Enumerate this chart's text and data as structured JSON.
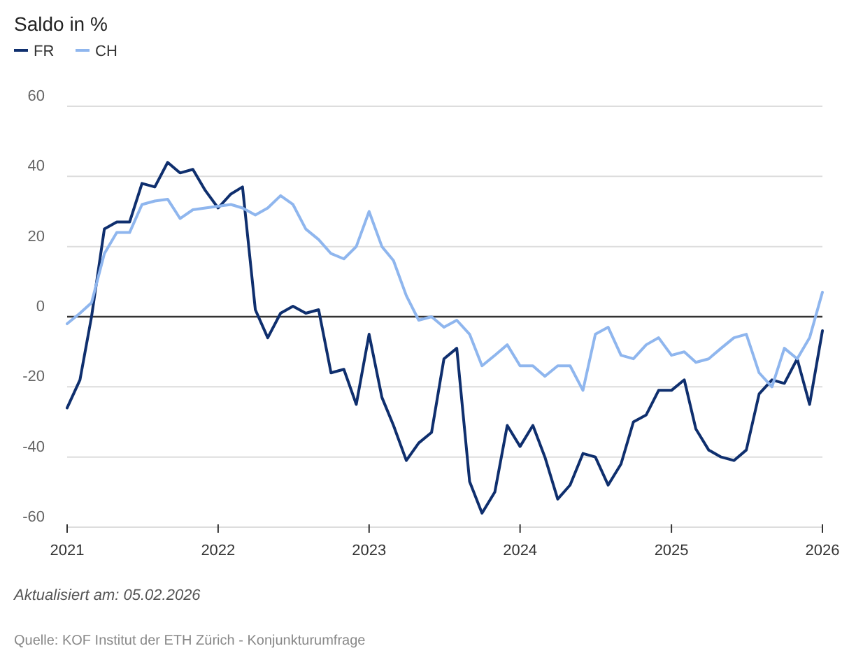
{
  "chart_data": {
    "type": "line",
    "title": "Saldo in %",
    "x": [
      "2021-01",
      "2021-02",
      "2021-03",
      "2021-04",
      "2021-05",
      "2021-06",
      "2021-07",
      "2021-08",
      "2021-09",
      "2021-10",
      "2021-11",
      "2021-12",
      "2022-01",
      "2022-02",
      "2022-03",
      "2022-04",
      "2022-05",
      "2022-06",
      "2022-07",
      "2022-08",
      "2022-09",
      "2022-10",
      "2022-11",
      "2022-12",
      "2023-01",
      "2023-02",
      "2023-03",
      "2023-04",
      "2023-05",
      "2023-06",
      "2023-07",
      "2023-08",
      "2023-09",
      "2023-10",
      "2023-11",
      "2023-12",
      "2024-01",
      "2024-02",
      "2024-03",
      "2024-04",
      "2024-05",
      "2024-06",
      "2024-07",
      "2024-08",
      "2024-09",
      "2024-10",
      "2024-11",
      "2024-12",
      "2025-01",
      "2025-02",
      "2025-03",
      "2025-04",
      "2025-05",
      "2025-06",
      "2025-07",
      "2025-08",
      "2025-09",
      "2025-10",
      "2025-11",
      "2025-12",
      "2026-01"
    ],
    "series": [
      {
        "name": "FR",
        "color": "#0f2f6e",
        "values": [
          -26,
          -18,
          0,
          25,
          27,
          27,
          38,
          37,
          44,
          41,
          42,
          36,
          31,
          35,
          37,
          2,
          -6,
          1,
          3,
          1,
          2,
          -16,
          -15,
          -25,
          -5,
          -23,
          -31,
          -41,
          -36,
          -33,
          -12,
          -9,
          -47,
          -56,
          -50,
          -31,
          -37,
          -31,
          -40,
          -52,
          -48,
          -39,
          -40,
          -48,
          -42,
          -30,
          -28,
          -21,
          -21,
          -18,
          -32,
          -38,
          -40,
          -41,
          -38,
          -22,
          -18,
          -19,
          -12,
          -25,
          -4
        ]
      },
      {
        "name": "CH",
        "color": "#8fb6ee",
        "values": [
          -2,
          1,
          4,
          18,
          24,
          24,
          32,
          33,
          33.5,
          28,
          30.5,
          31,
          31.5,
          32,
          31,
          29,
          31,
          34.5,
          32,
          25,
          22,
          18,
          16.5,
          20,
          30,
          20,
          16,
          6,
          -1,
          0,
          -3,
          -1,
          -5,
          -14,
          -11,
          -8,
          -14,
          -14,
          -17,
          -14,
          -14,
          -21,
          -5,
          -3,
          -11,
          -12,
          -8,
          -6,
          -11,
          -10,
          -13,
          -12,
          -9,
          -6,
          -5,
          -16,
          -20,
          -9,
          -12,
          -6,
          7
        ]
      }
    ],
    "xlim": [
      "2021-01",
      "2026-01"
    ],
    "xticks": [
      {
        "value": "2021-01",
        "label": "2021"
      },
      {
        "value": "2022-01",
        "label": "2022"
      },
      {
        "value": "2023-01",
        "label": "2023"
      },
      {
        "value": "2024-01",
        "label": "2024"
      },
      {
        "value": "2025-01",
        "label": "2025"
      },
      {
        "value": "2026-01",
        "label": "2026"
      }
    ],
    "ylim": [
      -60,
      60
    ],
    "yticks": [
      -60,
      -40,
      -20,
      0,
      20,
      40,
      60
    ],
    "ref_lines": [
      {
        "axis": "y",
        "value": 0,
        "color": "#333333"
      }
    ],
    "grid": "y",
    "legend": "top left",
    "line_style": "solid",
    "marker": "none",
    "annotations": [
      "Aktualisiert am: 05.02.2026",
      "Quelle: KOF Institut der ETH Zürich - Konjunkturumfrage"
    ]
  }
}
